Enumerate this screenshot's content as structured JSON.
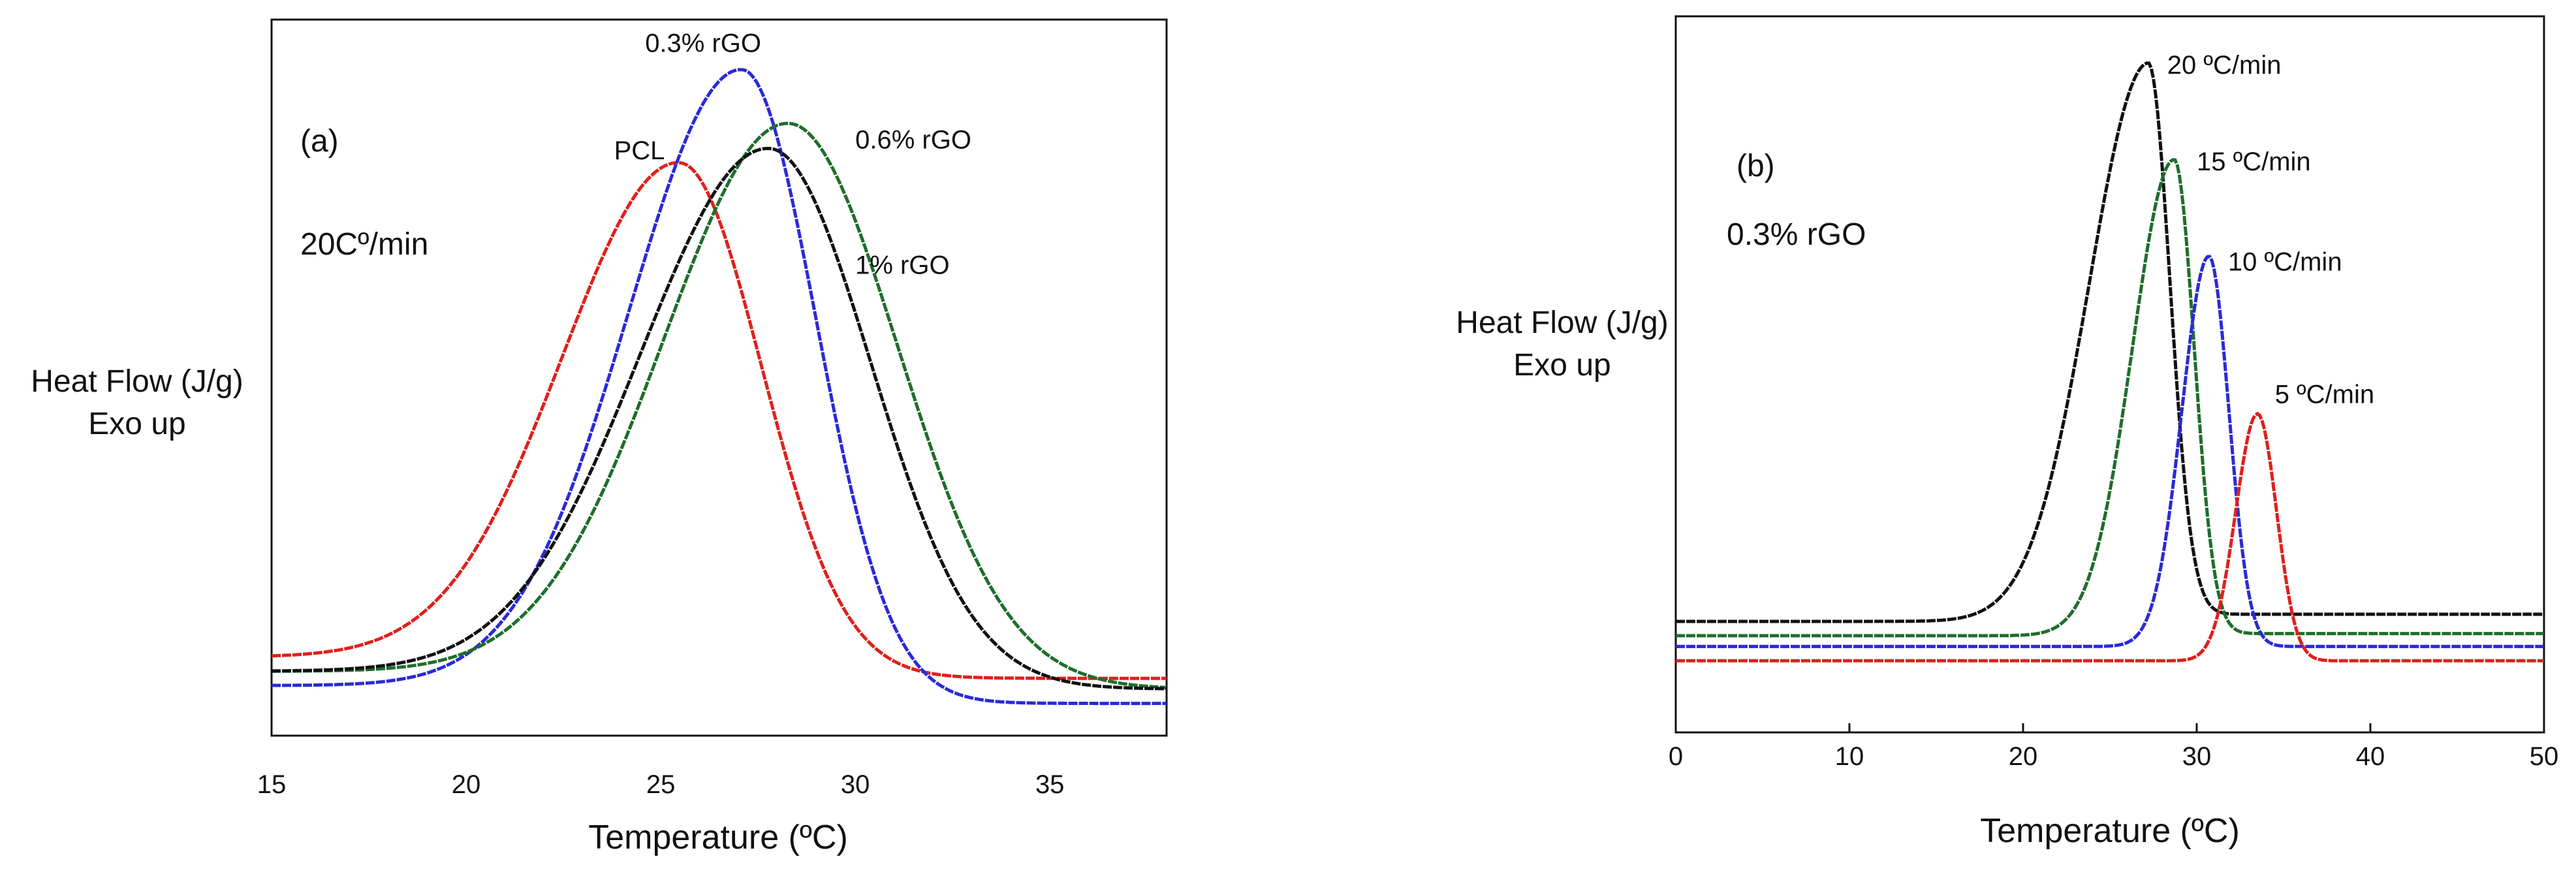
{
  "chart_data": [
    {
      "type": "line",
      "panel_label": "(a)",
      "condition_label": "20Cº/min",
      "xlabel": "Temperature (ºC)",
      "ylabel_lines": [
        "Heat Flow (J/g)",
        "Exo up"
      ],
      "xlim": [
        15,
        38
      ],
      "ylim": [
        0,
        1.0
      ],
      "xticks": [
        15,
        20,
        25,
        30,
        35
      ],
      "xtick_labels": [
        "15",
        "20",
        "25",
        "30",
        "35"
      ],
      "grid": false,
      "colors": {
        "PCL": "#e0201c",
        "0.3% rGO": "#2a2ad8",
        "0.6% rGO": "#1f6e2a",
        "1% rGO": "#111111"
      },
      "series": [
        {
          "name": "PCL",
          "color": "#e0201c",
          "base_left": 0.11,
          "base_right": 0.08,
          "peak_x": 25.5,
          "peak_y": 0.8,
          "sigma_left": 3.0,
          "sigma_right": 2.1,
          "label_x": 23.8,
          "label_y": 0.805
        },
        {
          "name": "0.3% rGO",
          "color": "#2a2ad8",
          "base_left": 0.07,
          "base_right": 0.045,
          "peak_x": 27.1,
          "peak_y": 0.93,
          "sigma_left": 2.9,
          "sigma_right": 1.9,
          "label_x": 24.6,
          "label_y": 0.955
        },
        {
          "name": "0.6% rGO",
          "color": "#1f6e2a",
          "base_left": 0.09,
          "base_right": 0.065,
          "peak_x": 28.3,
          "peak_y": 0.855,
          "sigma_left": 3.2,
          "sigma_right": 2.8,
          "label_x": 30.0,
          "label_y": 0.82
        },
        {
          "name": "1% rGO",
          "color": "#111111",
          "base_left": 0.09,
          "base_right": 0.065,
          "peak_x": 27.8,
          "peak_y": 0.82,
          "sigma_left": 3.3,
          "sigma_right": 2.6,
          "label_x": 30.0,
          "label_y": 0.645
        }
      ]
    },
    {
      "type": "line",
      "panel_label": "(b)",
      "condition_label": "0.3% rGO",
      "xlabel": "Temperature (ºC)",
      "ylabel_lines": [
        "Heat Flow (J/g)",
        "Exo up"
      ],
      "xlim": [
        0,
        50
      ],
      "ylim": [
        0,
        1.0
      ],
      "xticks": [
        0,
        10,
        20,
        30,
        40,
        50
      ],
      "xtick_labels": [
        "0",
        "10",
        "20",
        "30",
        "40",
        "50"
      ],
      "grid": false,
      "colors": {
        "20 ºC/min": "#111111",
        "15 ºC/min": "#1f6e2a",
        "10 ºC/min": "#2a2ad8",
        "5 ºC/min": "#e0201c"
      },
      "series": [
        {
          "name": "20 ºC/min",
          "color": "#111111",
          "base_left": 0.155,
          "base_right": 0.165,
          "peak_x": 27.2,
          "peak_y": 0.935,
          "sigma_left": 3.4,
          "sigma_right": 1.25,
          "label_x": 28.3,
          "label_y": 0.92
        },
        {
          "name": "15 ºC/min",
          "color": "#1f6e2a",
          "base_left": 0.135,
          "base_right": 0.138,
          "peak_x": 28.7,
          "peak_y": 0.8,
          "sigma_left": 2.4,
          "sigma_right": 1.15,
          "label_x": 30.0,
          "label_y": 0.785
        },
        {
          "name": "10 ºC/min",
          "color": "#2a2ad8",
          "base_left": 0.12,
          "base_right": 0.12,
          "peak_x": 30.7,
          "peak_y": 0.665,
          "sigma_left": 1.55,
          "sigma_right": 1.15,
          "label_x": 31.8,
          "label_y": 0.645
        },
        {
          "name": "5 ºC/min",
          "color": "#e0201c",
          "base_left": 0.1,
          "base_right": 0.1,
          "peak_x": 33.5,
          "peak_y": 0.445,
          "sigma_left": 1.25,
          "sigma_right": 1.1,
          "label_x": 34.5,
          "label_y": 0.46
        }
      ]
    }
  ]
}
